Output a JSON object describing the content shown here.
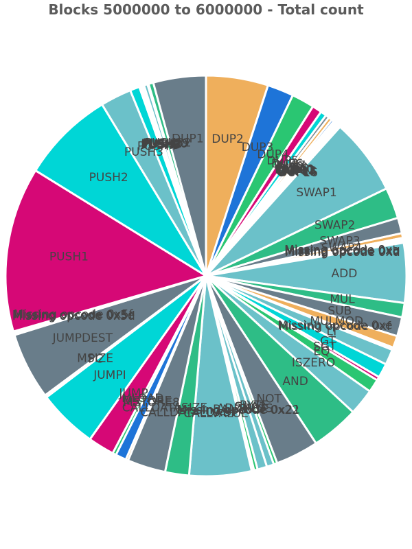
{
  "chart_data": {
    "type": "pie",
    "title": "Blocks 5000000 to 6000000 - Total count",
    "start_angle_deg": 0,
    "direction": "clockwise",
    "slices": [
      {
        "label": "DUP2",
        "value": 5.2,
        "color": "#efaf5c"
      },
      {
        "label": "DUP3",
        "value": 2.2,
        "color": "#1e74d8"
      },
      {
        "label": "DUP4",
        "value": 1.9,
        "color": "#2ac672"
      },
      {
        "label": "DUP5",
        "value": 0.8,
        "color": "#d60876"
      },
      {
        "label": "DUP6",
        "value": 0.5,
        "color": "#00d6d6"
      },
      {
        "label": "DUP7",
        "value": 0.3,
        "color": "#7a8b99"
      },
      {
        "label": "DUP8",
        "value": 0.3,
        "color": "#efaf5c"
      },
      {
        "label": "DUP9",
        "value": 0.2,
        "color": "#1e74d8"
      },
      {
        "label": "DUP10",
        "value": 0.1,
        "color": "#2ac672"
      },
      {
        "label": "DUP11",
        "value": 0.1,
        "color": "#d60876"
      },
      {
        "label": "DUP12",
        "value": 0.1,
        "color": "#00d6d6"
      },
      {
        "label": "DUP13",
        "value": 0.1,
        "color": "#7a8b99"
      },
      {
        "label": "DUP14",
        "value": 0.1,
        "color": "#efaf5c"
      },
      {
        "label": "DUP15",
        "value": 0.1,
        "color": "#1e74d8"
      },
      {
        "label": "DUP16",
        "value": 0.1,
        "color": "#2ac672"
      },
      {
        "label": "SWAP1",
        "value": 6.4,
        "color": "#6bc1c9"
      },
      {
        "label": "SWAP2",
        "value": 2.6,
        "color": "#2ebd86"
      },
      {
        "label": "SWAP3",
        "value": 1.3,
        "color": "#697d8a"
      },
      {
        "label": "SWAP4",
        "value": 0.4,
        "color": "#efaf5c"
      },
      {
        "label": "Missing opcode 0xa",
        "value": 0.1,
        "color": "#1e74d8"
      },
      {
        "label": "Missing opcode 0xb",
        "value": 0.1,
        "color": "#2ac672"
      },
      {
        "label": "Missing opcode 0xc",
        "value": 0.1,
        "color": "#d60876"
      },
      {
        "label": "Missing opcode 0xd",
        "value": 0.1,
        "color": "#00d6d6"
      },
      {
        "label": "ADD",
        "value": 5.0,
        "color": "#6bc1c9"
      },
      {
        "label": "MUL",
        "value": 1.2,
        "color": "#2ebd86"
      },
      {
        "label": "SUB",
        "value": 1.6,
        "color": "#697d8a"
      },
      {
        "label": "MULMOD",
        "value": 1.0,
        "color": "#efaf5c"
      },
      {
        "label": "Missing opcode 0xe",
        "value": 0.1,
        "color": "#1e74d8"
      },
      {
        "label": "Missing opcode 0xf",
        "value": 0.1,
        "color": "#2ac672"
      },
      {
        "label": "LT",
        "value": 1.3,
        "color": "#6bc1c9"
      },
      {
        "label": "GT",
        "value": 1.2,
        "color": "#00d6d6"
      },
      {
        "label": "SGT",
        "value": 0.3,
        "color": "#d60876"
      },
      {
        "label": "EQ",
        "value": 1.1,
        "color": "#2ac672"
      },
      {
        "label": "ISZERO",
        "value": 2.2,
        "color": "#6bc1c9"
      },
      {
        "label": "AND",
        "value": 4.0,
        "color": "#2ebd86"
      },
      {
        "label": "NOT",
        "value": 3.6,
        "color": "#697d8a"
      },
      {
        "label": "BYTE",
        "value": 0.3,
        "color": "#2ac672"
      },
      {
        "label": "SHA3",
        "value": 0.6,
        "color": "#6bc1c9"
      },
      {
        "label": "ADDRESS",
        "value": 0.8,
        "color": "#6bc1c9"
      },
      {
        "label": "BALANCE",
        "value": 0.3,
        "color": "#2ac672"
      },
      {
        "label": "Missing opcode 0x21",
        "value": 0.1,
        "color": "#1e74d8"
      },
      {
        "label": "Missing opcode 0x22",
        "value": 0.1,
        "color": "#d60876"
      },
      {
        "label": "CALLVALUE",
        "value": 5.2,
        "color": "#6bc1c9"
      },
      {
        "label": "CALLDATALOAD",
        "value": 2.0,
        "color": "#2ebd86"
      },
      {
        "label": "CALLDATASIZE",
        "value": 3.2,
        "color": "#697d8a"
      },
      {
        "label": "MSTORE8",
        "value": 0.2,
        "color": "#efaf5c"
      },
      {
        "label": "MSTORE",
        "value": 0.9,
        "color": "#1e74d8"
      },
      {
        "label": "MLOAD",
        "value": 0.3,
        "color": "#2ac672"
      },
      {
        "label": "JUMP",
        "value": 2.2,
        "color": "#d60876"
      },
      {
        "label": "JUMPI",
        "value": 5.0,
        "color": "#00d6d6"
      },
      {
        "label": "PC",
        "value": 0.1,
        "color": "#efaf5c"
      },
      {
        "label": "MSIZE",
        "value": 0.1,
        "color": "#1e74d8"
      },
      {
        "label": "JUMPDEST",
        "value": 5.6,
        "color": "#697d8a"
      },
      {
        "label": "Missing opcode 0x5d",
        "value": 0.1,
        "color": "#2ac672"
      },
      {
        "label": "Missing opcode 0x5e",
        "value": 0.1,
        "color": "#d60876"
      },
      {
        "label": "Missing opcode 0x5f",
        "value": 0.1,
        "color": "#00d6d6"
      },
      {
        "label": "PUSH1",
        "value": 13.8,
        "color": "#d60876"
      },
      {
        "label": "PUSH2",
        "value": 7.8,
        "color": "#00d6d6"
      },
      {
        "label": "PUSH3",
        "value": 2.6,
        "color": "#6bc1c9"
      },
      {
        "label": "PUSH4",
        "value": 0.8,
        "color": "#00d6d6"
      },
      {
        "label": "PUSH5",
        "value": 0.1,
        "color": "#2ac672"
      },
      {
        "label": "PUSH6",
        "value": 0.1,
        "color": "#d60876"
      },
      {
        "label": "PUSH7",
        "value": 0.1,
        "color": "#efaf5c"
      },
      {
        "label": "PUSH8",
        "value": 0.1,
        "color": "#1e74d8"
      },
      {
        "label": "PUSH20",
        "value": 0.3,
        "color": "#6bc1c9"
      },
      {
        "label": "PUSH29",
        "value": 0.1,
        "color": "#2ac672"
      },
      {
        "label": "PUSH32",
        "value": 0.4,
        "color": "#2ebd86"
      },
      {
        "label": "DUP1",
        "value": 4.4,
        "color": "#697d8a"
      }
    ]
  }
}
